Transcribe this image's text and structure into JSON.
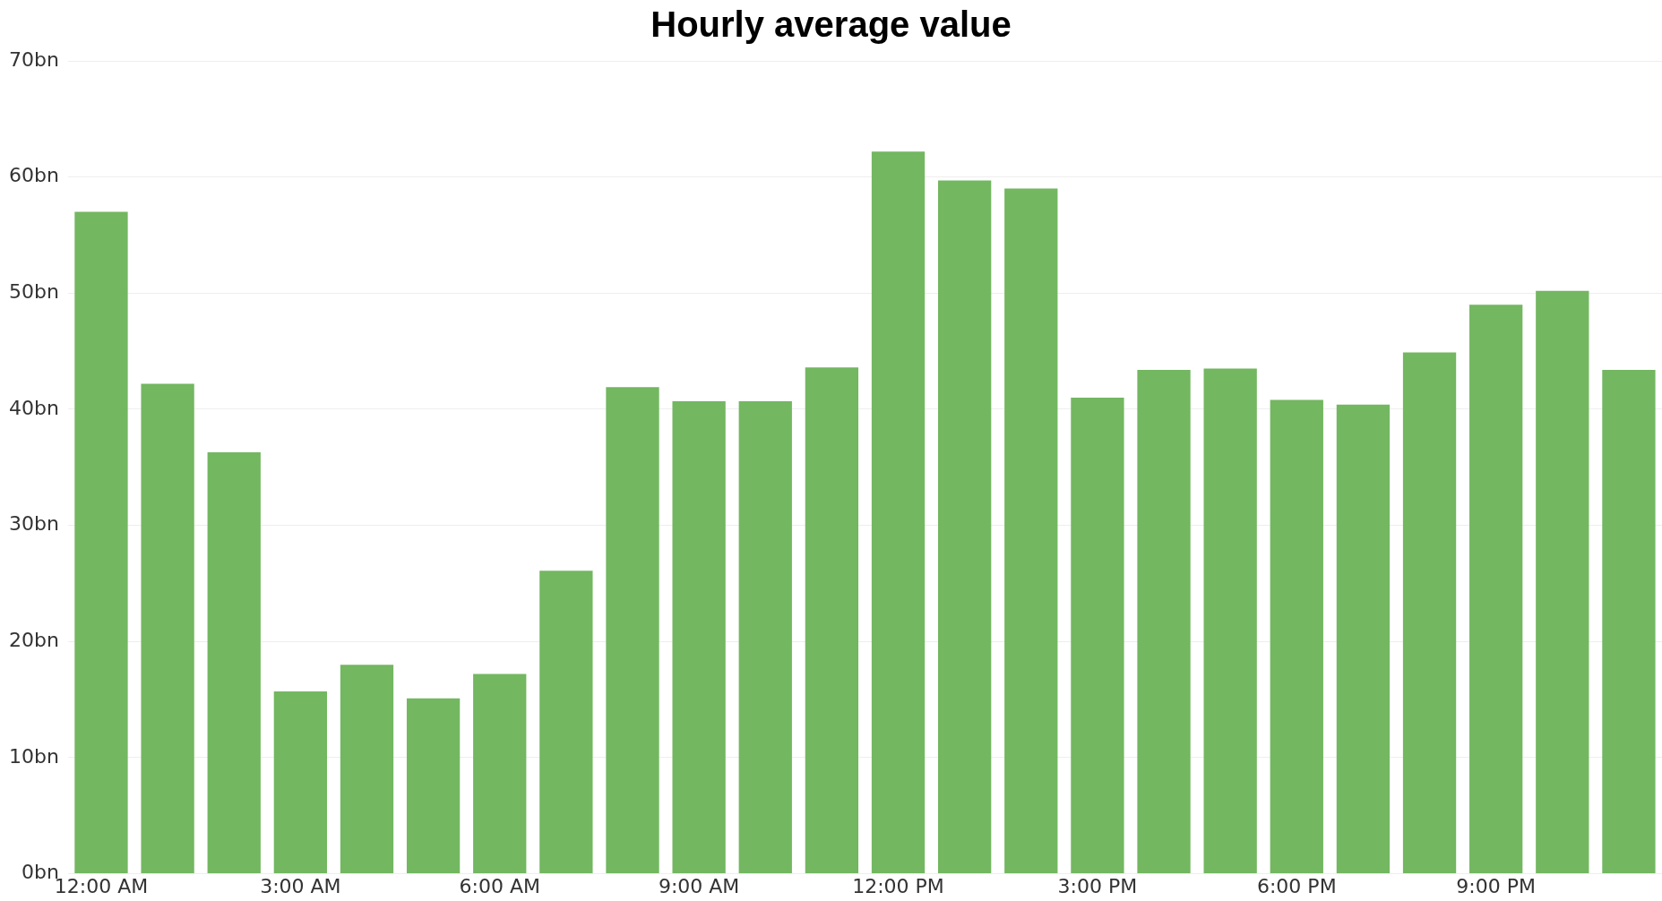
{
  "chart_data": {
    "type": "bar",
    "title": "Hourly average value",
    "categories": [
      "12:00 AM",
      null,
      null,
      "3:00 AM",
      null,
      null,
      "6:00 AM",
      null,
      null,
      "9:00 AM",
      null,
      null,
      "12:00 PM",
      null,
      null,
      "3:00 PM",
      null,
      null,
      "6:00 PM",
      null,
      null,
      "9:00 PM",
      null,
      null
    ],
    "values": [
      57.0,
      42.2,
      36.3,
      15.7,
      18.0,
      15.1,
      17.2,
      26.1,
      41.9,
      40.7,
      40.7,
      43.6,
      62.2,
      59.7,
      59.0,
      41.0,
      43.4,
      43.5,
      40.8,
      40.4,
      44.9,
      49.0,
      50.2,
      43.4
    ],
    "color": "#73b761",
    "ylim": [
      0,
      70
    ],
    "yticks": [
      {
        "value": 0,
        "label": "0bn"
      },
      {
        "value": 10,
        "label": "10bn"
      },
      {
        "value": 20,
        "label": "20bn"
      },
      {
        "value": 30,
        "label": "30bn"
      },
      {
        "value": 40,
        "label": "40bn"
      },
      {
        "value": 50,
        "label": "50bn"
      },
      {
        "value": 60,
        "label": "60bn"
      },
      {
        "value": 70,
        "label": "70bn"
      }
    ],
    "grid": "y"
  }
}
